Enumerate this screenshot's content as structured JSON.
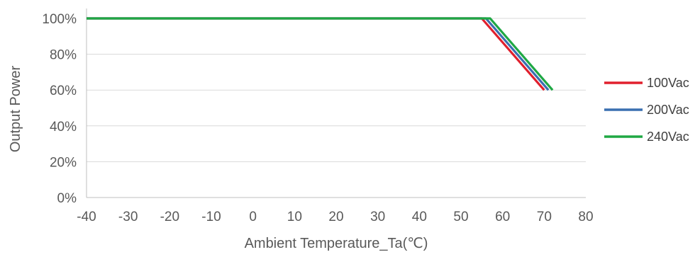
{
  "chart_data": {
    "type": "line",
    "title": "",
    "xlabel": "Ambient Temperature_Ta(℃)",
    "ylabel": "Output Power",
    "xlim": [
      -40,
      80
    ],
    "ylim": [
      0,
      100
    ],
    "x_ticks": [
      "-40",
      "-30",
      "-20",
      "-10",
      "0",
      "10",
      "20",
      "30",
      "40",
      "50",
      "60",
      "70",
      "80"
    ],
    "y_ticks": [
      "0%",
      "20%",
      "40%",
      "60%",
      "80%",
      "100%"
    ],
    "grid": true,
    "legend_position": "right",
    "series": [
      {
        "name": "100Vac",
        "color": "#e0202e",
        "points": [
          [
            -40,
            100
          ],
          [
            55,
            100
          ],
          [
            70,
            60
          ]
        ]
      },
      {
        "name": "200Vac",
        "color": "#3a6fb0",
        "points": [
          [
            -40,
            100
          ],
          [
            56,
            100
          ],
          [
            71,
            60
          ]
        ]
      },
      {
        "name": "240Vac",
        "color": "#1fa844",
        "points": [
          [
            -40,
            100
          ],
          [
            57,
            100
          ],
          [
            72,
            60
          ]
        ]
      }
    ]
  }
}
